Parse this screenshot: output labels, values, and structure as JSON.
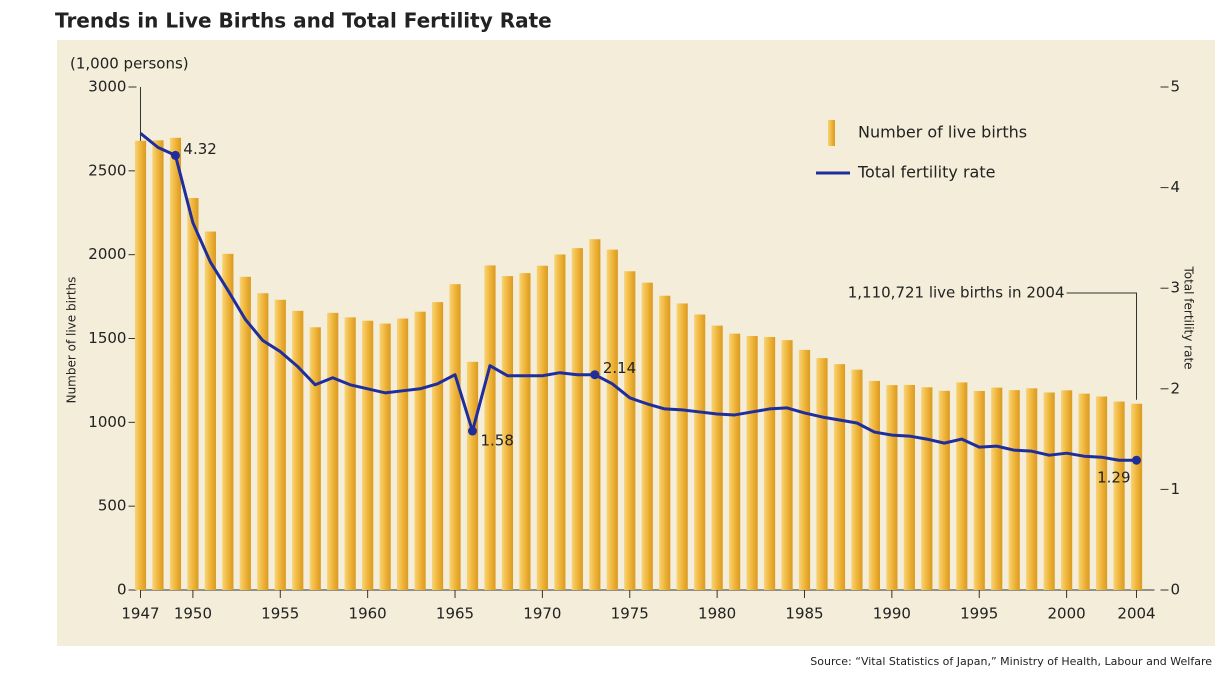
{
  "chart_data": {
    "type": "bar-line",
    "title": "Trends in Live Births and Total Fertility Rate",
    "y_unit": "(1,000 persons)",
    "ylabel": "Number of live births",
    "y2label": "Total fertility rate",
    "source": "Source: “Vital Statistics of Japan,” Ministry of Health, Labour and Welfare",
    "annotation": "1,110,721 live births in 2004",
    "x": [
      1947,
      1948,
      1949,
      1950,
      1951,
      1952,
      1953,
      1954,
      1955,
      1956,
      1957,
      1958,
      1959,
      1960,
      1961,
      1962,
      1963,
      1964,
      1965,
      1966,
      1967,
      1968,
      1969,
      1970,
      1971,
      1972,
      1973,
      1974,
      1975,
      1976,
      1977,
      1978,
      1979,
      1980,
      1981,
      1982,
      1983,
      1984,
      1985,
      1986,
      1987,
      1988,
      1989,
      1990,
      1991,
      1992,
      1993,
      1994,
      1995,
      1996,
      1997,
      1998,
      1999,
      2000,
      2001,
      2002,
      2003,
      2004
    ],
    "xlim": [
      1946.4,
      2004.6
    ],
    "xticks": [
      1947,
      1950,
      1955,
      1960,
      1965,
      1970,
      1975,
      1980,
      1985,
      1990,
      1995,
      2000,
      2004
    ],
    "ylim": [
      0,
      3000
    ],
    "yticks": [
      0,
      500,
      1000,
      1500,
      2000,
      2500,
      3000
    ],
    "y2lim": [
      0,
      5
    ],
    "y2ticks": [
      0,
      1,
      2,
      3,
      4,
      5
    ],
    "legend": "upper right",
    "series": [
      {
        "name": "Number of live births",
        "type": "bar",
        "color": "#f0b53a",
        "values": [
          2679,
          2682,
          2697,
          2338,
          2138,
          2005,
          1868,
          1770,
          1731,
          1665,
          1567,
          1653,
          1626,
          1606,
          1589,
          1619,
          1660,
          1717,
          1824,
          1361,
          1936,
          1872,
          1890,
          1934,
          2001,
          2039,
          2092,
          2030,
          1901,
          1833,
          1755,
          1709,
          1643,
          1577,
          1529,
          1515,
          1509,
          1490,
          1432,
          1383,
          1347,
          1314,
          1247,
          1222,
          1223,
          1209,
          1188,
          1238,
          1187,
          1207,
          1192,
          1203,
          1178,
          1191,
          1171,
          1154,
          1124,
          1111
        ]
      },
      {
        "name": "Total fertility rate",
        "type": "line",
        "axis": "y2",
        "color": "#1f2e9c",
        "values": [
          4.54,
          4.4,
          4.32,
          3.65,
          3.26,
          2.98,
          2.69,
          2.48,
          2.37,
          2.22,
          2.04,
          2.11,
          2.04,
          2.0,
          1.96,
          1.98,
          2.0,
          2.05,
          2.14,
          1.58,
          2.23,
          2.13,
          2.13,
          2.13,
          2.16,
          2.14,
          2.14,
          2.05,
          1.91,
          1.85,
          1.8,
          1.79,
          1.77,
          1.75,
          1.74,
          1.77,
          1.8,
          1.81,
          1.76,
          1.72,
          1.69,
          1.66,
          1.57,
          1.54,
          1.53,
          1.5,
          1.46,
          1.5,
          1.42,
          1.43,
          1.39,
          1.38,
          1.34,
          1.36,
          1.33,
          1.32,
          1.29,
          1.29
        ],
        "value_labels": [
          null,
          null,
          "4.32",
          null,
          null,
          null,
          null,
          null,
          null,
          null,
          null,
          null,
          null,
          null,
          null,
          null,
          null,
          null,
          null,
          "1.58",
          null,
          null,
          null,
          null,
          null,
          null,
          "2.14",
          null,
          null,
          null,
          null,
          null,
          null,
          null,
          null,
          null,
          null,
          null,
          null,
          null,
          null,
          null,
          null,
          null,
          null,
          null,
          null,
          null,
          null,
          null,
          null,
          null,
          null,
          null,
          null,
          null,
          null,
          "1.29"
        ]
      }
    ]
  }
}
